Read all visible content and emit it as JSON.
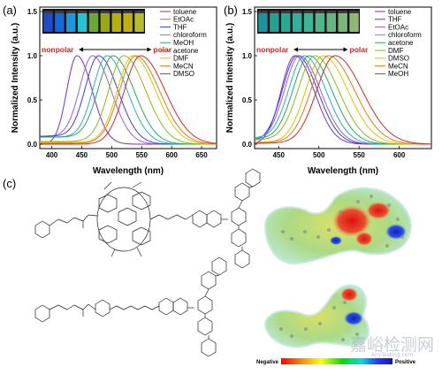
{
  "panels": {
    "a": {
      "letter": "(a)"
    },
    "b": {
      "letter": "(b)"
    },
    "c": {
      "letter": "(c)"
    }
  },
  "colorbar": {
    "left_label": "Negative",
    "right_label": "Positive"
  },
  "watermark": {
    "text": "嘉峪检测网",
    "sub": "AnyTesting.com"
  },
  "colors": {
    "polar_arrow": "#d42020",
    "axis": "#000000"
  },
  "chart_data": [
    {
      "type": "line",
      "panel": "a",
      "xlabel": "Wavelength (nm)",
      "ylabel": "Normalized Intensity (a.u.)",
      "xlim": [
        380,
        675
      ],
      "ylim": [
        -0.05,
        1.55
      ],
      "xticks": [
        400,
        450,
        500,
        550,
        600,
        650
      ],
      "yticks": [
        0.0,
        0.5,
        1.0,
        1.5
      ],
      "ytick_labels": [
        "0.0",
        "0.5",
        "1.0",
        "1.5"
      ],
      "annotation_left": "nonpolar",
      "annotation_right": "polar",
      "annotation_y": 1.07,
      "annotation_x": [
        395,
        565
      ],
      "legend_position": "top-right",
      "vial_colors": [
        "#2050e0",
        "#1d6fe8",
        "#20a6f0",
        "#2ad6e6",
        "#78b838",
        "#aab818",
        "#c8c010",
        "#d8c010",
        "#c8d030"
      ],
      "series": [
        {
          "name": "toluene",
          "color": "#7b2fbf",
          "peak": 442,
          "wl": 24,
          "wr": 36,
          "base": 0.0
        },
        {
          "name": "EtOAc",
          "color": "#a05cd8",
          "peak": 468,
          "wl": 30,
          "wr": 44,
          "base": 0.09
        },
        {
          "name": "THF",
          "color": "#3a40c8",
          "peak": 478,
          "wl": 31,
          "wr": 46,
          "base": 0.09
        },
        {
          "name": "chloroform",
          "color": "#2aa8d8",
          "peak": 492,
          "wl": 32,
          "wr": 48,
          "base": 0.08
        },
        {
          "name": "MeOH",
          "color": "#29a85a",
          "peak": 502,
          "wl": 34,
          "wr": 50,
          "base": 0.08
        },
        {
          "name": "acetone",
          "color": "#8ab820",
          "peak": 520,
          "wl": 35,
          "wr": 52,
          "base": 0.03
        },
        {
          "name": "DMF",
          "color": "#d8c400",
          "peak": 535,
          "wl": 36,
          "wr": 54,
          "base": 0.02
        },
        {
          "name": "MeCN",
          "color": "#e07a18",
          "peak": 540,
          "wl": 38,
          "wr": 56,
          "base": 0.01
        },
        {
          "name": "DMSO",
          "color": "#d42828",
          "peak": 548,
          "wl": 38,
          "wr": 58,
          "base": 0.0
        }
      ]
    },
    {
      "type": "line",
      "panel": "b",
      "xlabel": "Wavelength (nm)",
      "ylabel": "Normalized Intensity (a.u.)",
      "xlim": [
        420,
        640
      ],
      "ylim": [
        -0.05,
        1.55
      ],
      "xticks": [
        450,
        500,
        550,
        600
      ],
      "yticks": [
        0.0,
        0.5,
        1.0,
        1.5
      ],
      "ytick_labels": [
        "0.0",
        "0.5",
        "1.0",
        "1.5"
      ],
      "annotation_left": "nonpolar",
      "annotation_right": "polar",
      "annotation_y": 1.07,
      "annotation_x": [
        427,
        535
      ],
      "legend_position": "top-right",
      "vial_colors": [
        "#20a0a8",
        "#28b0a0",
        "#30b8a0",
        "#38c0a8",
        "#40c8a0",
        "#58c898",
        "#70c890",
        "#88c888",
        "#a0c880"
      ],
      "series": [
        {
          "name": "toluene",
          "color": "#7b2fbf",
          "peak": 470,
          "wl": 24,
          "wr": 34,
          "base": 0.0
        },
        {
          "name": "THF",
          "color": "#3a40c8",
          "peak": 473,
          "wl": 26,
          "wr": 36,
          "base": 0.03
        },
        {
          "name": "EtOAc",
          "color": "#a05cd8",
          "peak": 476,
          "wl": 26,
          "wr": 37,
          "base": 0.05
        },
        {
          "name": "chloroform",
          "color": "#2aa8d8",
          "peak": 482,
          "wl": 27,
          "wr": 38,
          "base": 0.07
        },
        {
          "name": "acetone",
          "color": "#29a85a",
          "peak": 488,
          "wl": 28,
          "wr": 40,
          "base": 0.06
        },
        {
          "name": "DMF",
          "color": "#8ab820",
          "peak": 495,
          "wl": 29,
          "wr": 42,
          "base": 0.05
        },
        {
          "name": "DMSO",
          "color": "#d8c400",
          "peak": 505,
          "wl": 30,
          "wr": 44,
          "base": 0.02
        },
        {
          "name": "MeCN",
          "color": "#e07a18",
          "peak": 512,
          "wl": 31,
          "wr": 46,
          "base": 0.02
        },
        {
          "name": "MeOH",
          "color": "#d42828",
          "peak": 520,
          "wl": 32,
          "wr": 48,
          "base": 0.01
        }
      ]
    }
  ]
}
